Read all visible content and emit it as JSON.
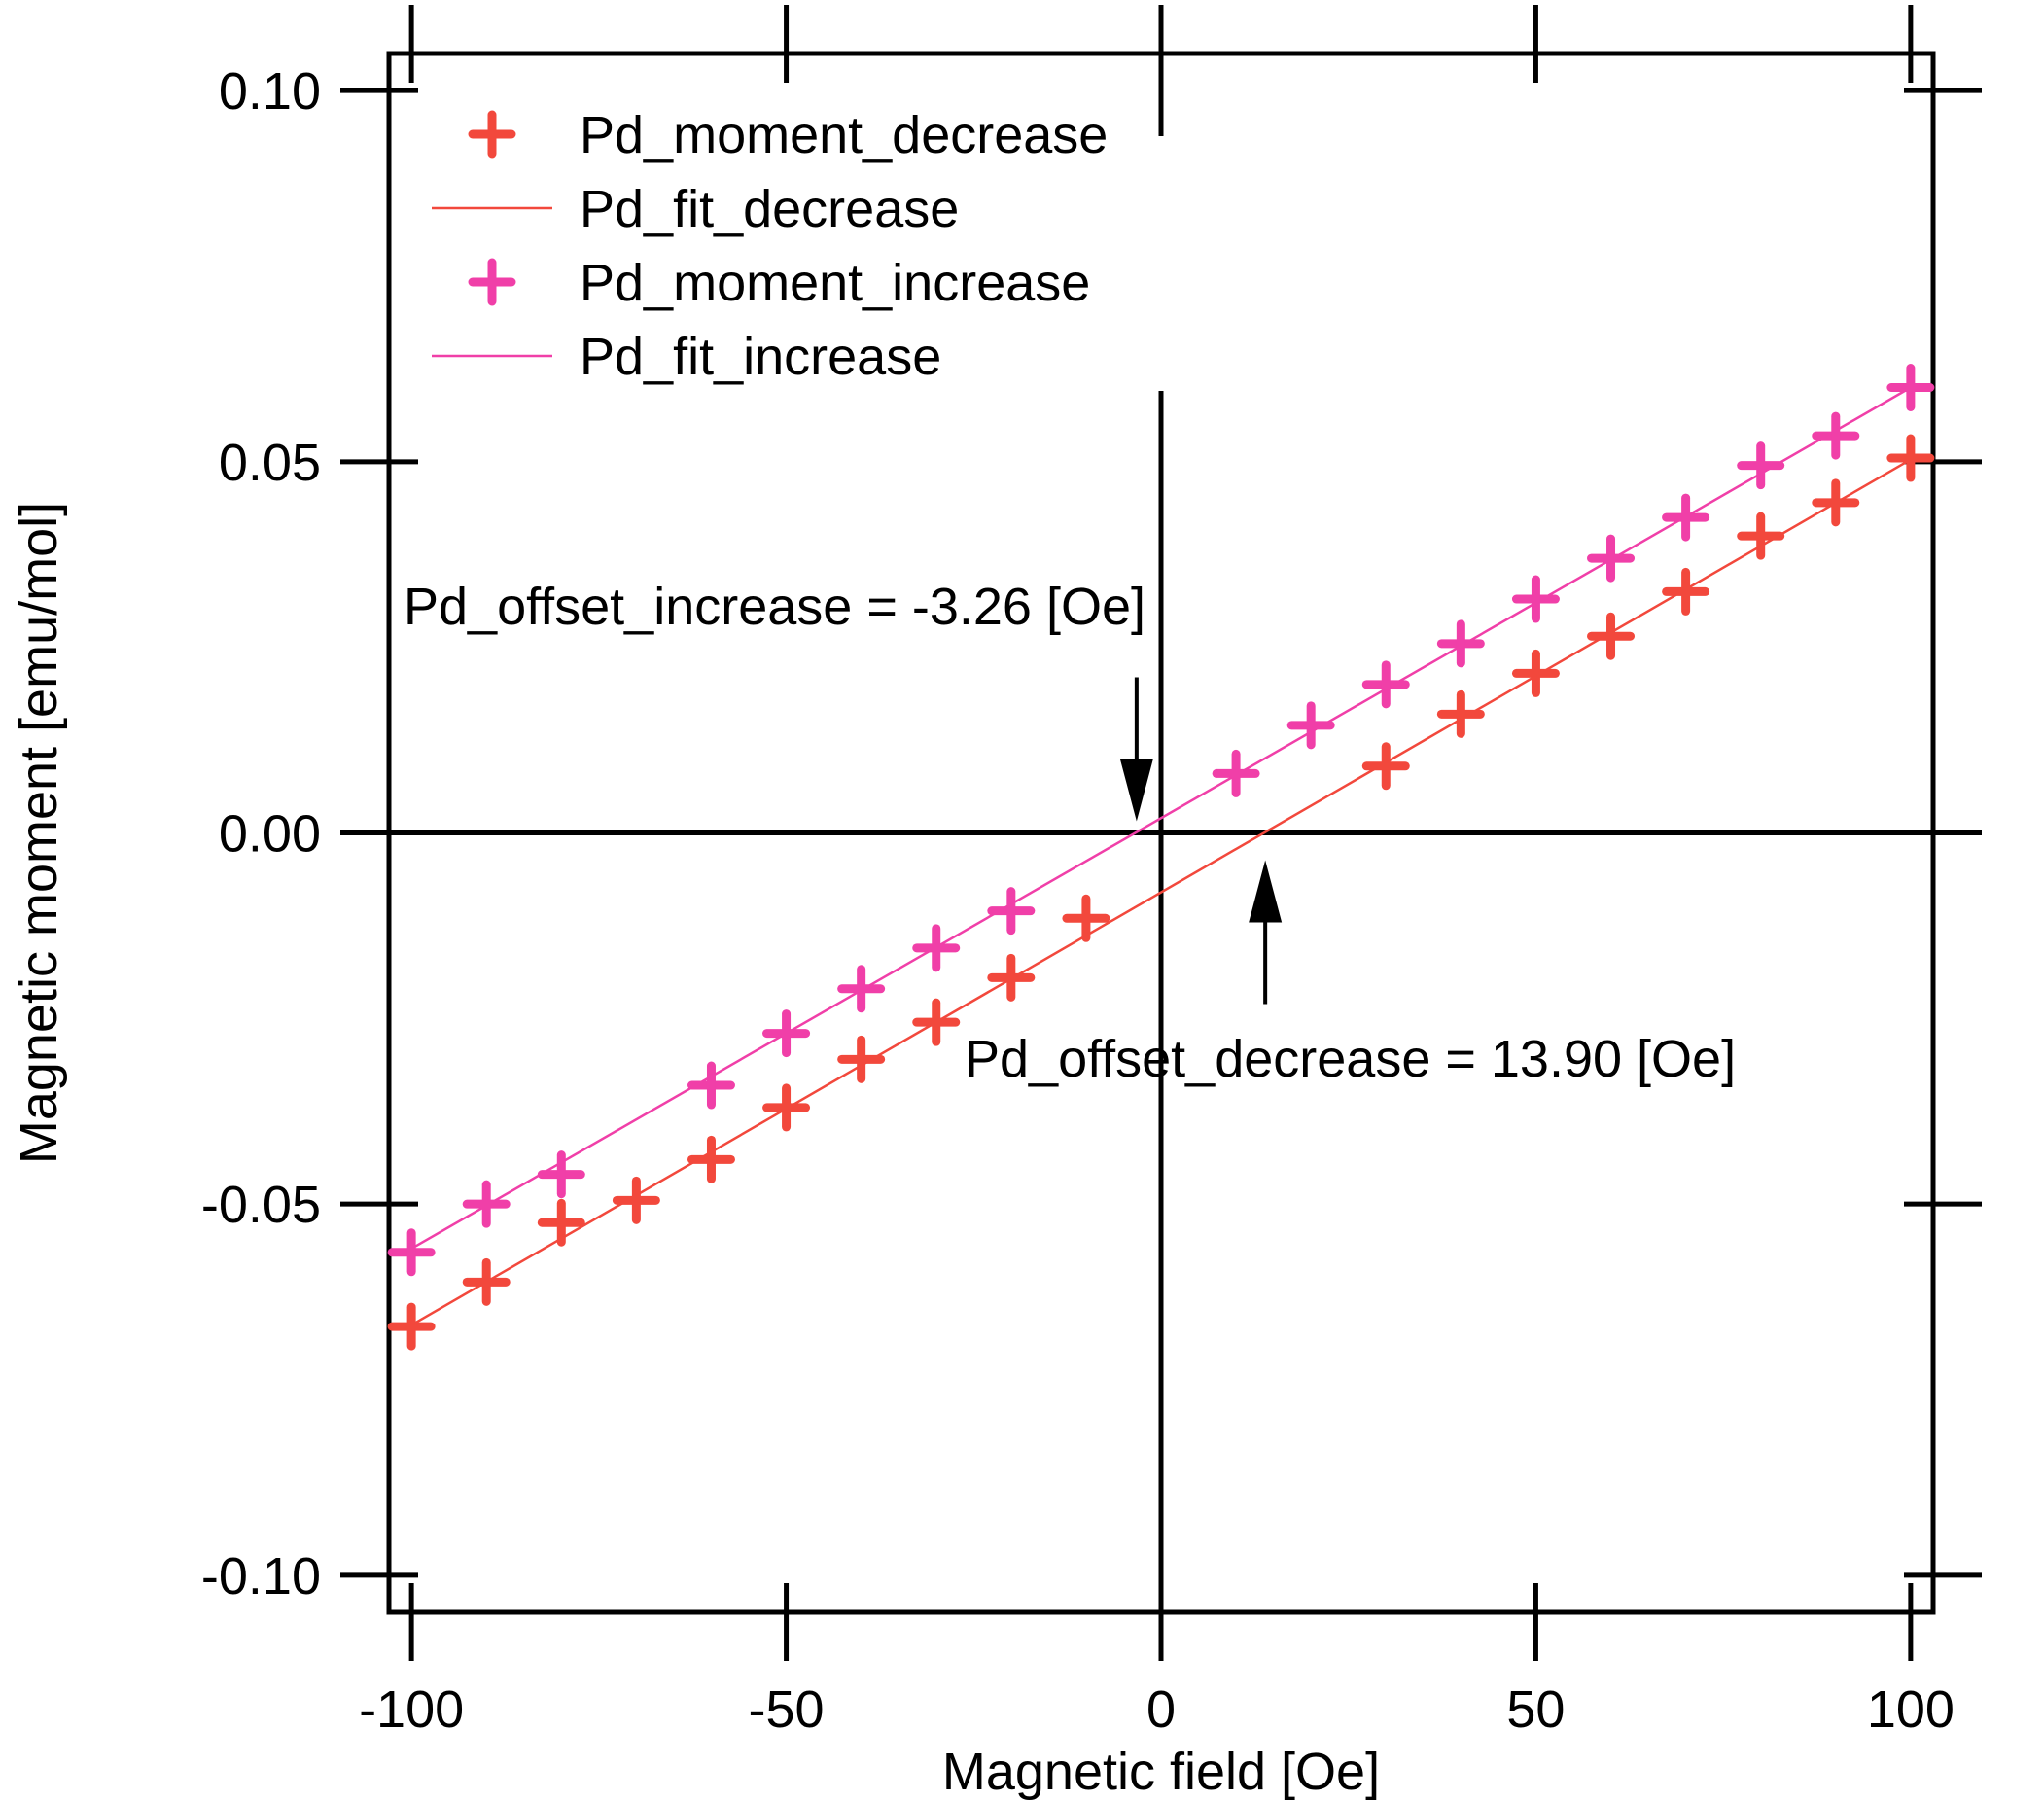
{
  "chart_data": {
    "type": "scatter",
    "title": "",
    "xlabel": "Magnetic field [Oe]",
    "ylabel": "Magnetic moment [emu/mol]",
    "xlim": [
      -103,
      103
    ],
    "ylim": [
      -0.105,
      0.105
    ],
    "x_ticks": [
      -100,
      -50,
      0,
      50,
      100
    ],
    "x_tick_labels": [
      "-100",
      "-50",
      "0",
      "50",
      "100"
    ],
    "y_ticks": [
      -0.1,
      -0.05,
      0.0,
      0.05,
      0.1
    ],
    "y_tick_labels": [
      "-0.10",
      "-0.05",
      "0.00",
      "0.05",
      "0.10"
    ],
    "zero_lines": true,
    "grid": false,
    "legend_position": "top-left",
    "series": [
      {
        "name": "Pd_moment_decrease",
        "kind": "markers",
        "marker": "plus",
        "color": "#f2483c",
        "x": [
          -100,
          -90,
          -80,
          -70,
          -60,
          -50,
          -40,
          -30,
          -20,
          -10,
          30,
          40,
          50,
          60,
          70,
          80,
          90,
          100
        ],
        "y": [
          -0.0665,
          -0.0605,
          -0.0525,
          -0.0495,
          -0.044,
          -0.037,
          -0.0305,
          -0.0255,
          -0.0195,
          -0.0115,
          0.009,
          0.016,
          0.0215,
          0.0265,
          0.0325,
          0.04,
          0.0445,
          0.0505
        ]
      },
      {
        "name": "Pd_fit_decrease",
        "kind": "line",
        "color": "#f2483c",
        "x": [
          -100,
          100
        ],
        "y": [
          -0.0663,
          0.0503
        ]
      },
      {
        "name": "Pd_moment_increase",
        "kind": "markers",
        "marker": "plus",
        "color": "#f03fa8",
        "x": [
          -100,
          -90,
          -80,
          -60,
          -50,
          -40,
          -30,
          -20,
          10,
          20,
          30,
          40,
          50,
          60,
          70,
          80,
          90,
          100
        ],
        "y": [
          -0.0565,
          -0.05,
          -0.046,
          -0.034,
          -0.027,
          -0.021,
          -0.0155,
          -0.0105,
          0.008,
          0.0145,
          0.02,
          0.0255,
          0.0315,
          0.037,
          0.0425,
          0.0495,
          0.0535,
          0.06
        ]
      },
      {
        "name": "Pd_fit_increase",
        "kind": "line",
        "color": "#f03fa8",
        "x": [
          -100,
          100
        ],
        "y": [
          -0.056,
          0.06
        ]
      }
    ],
    "annotations": [
      {
        "text": "Pd_offset_increase = -3.26 [Oe]",
        "arrow_direction": "down",
        "arrow_tip": [
          -3.26,
          0.0
        ]
      },
      {
        "text": "Pd_offset_decrease = 13.90 [Oe]",
        "arrow_direction": "up",
        "arrow_tip": [
          13.9,
          0.0
        ]
      }
    ]
  }
}
